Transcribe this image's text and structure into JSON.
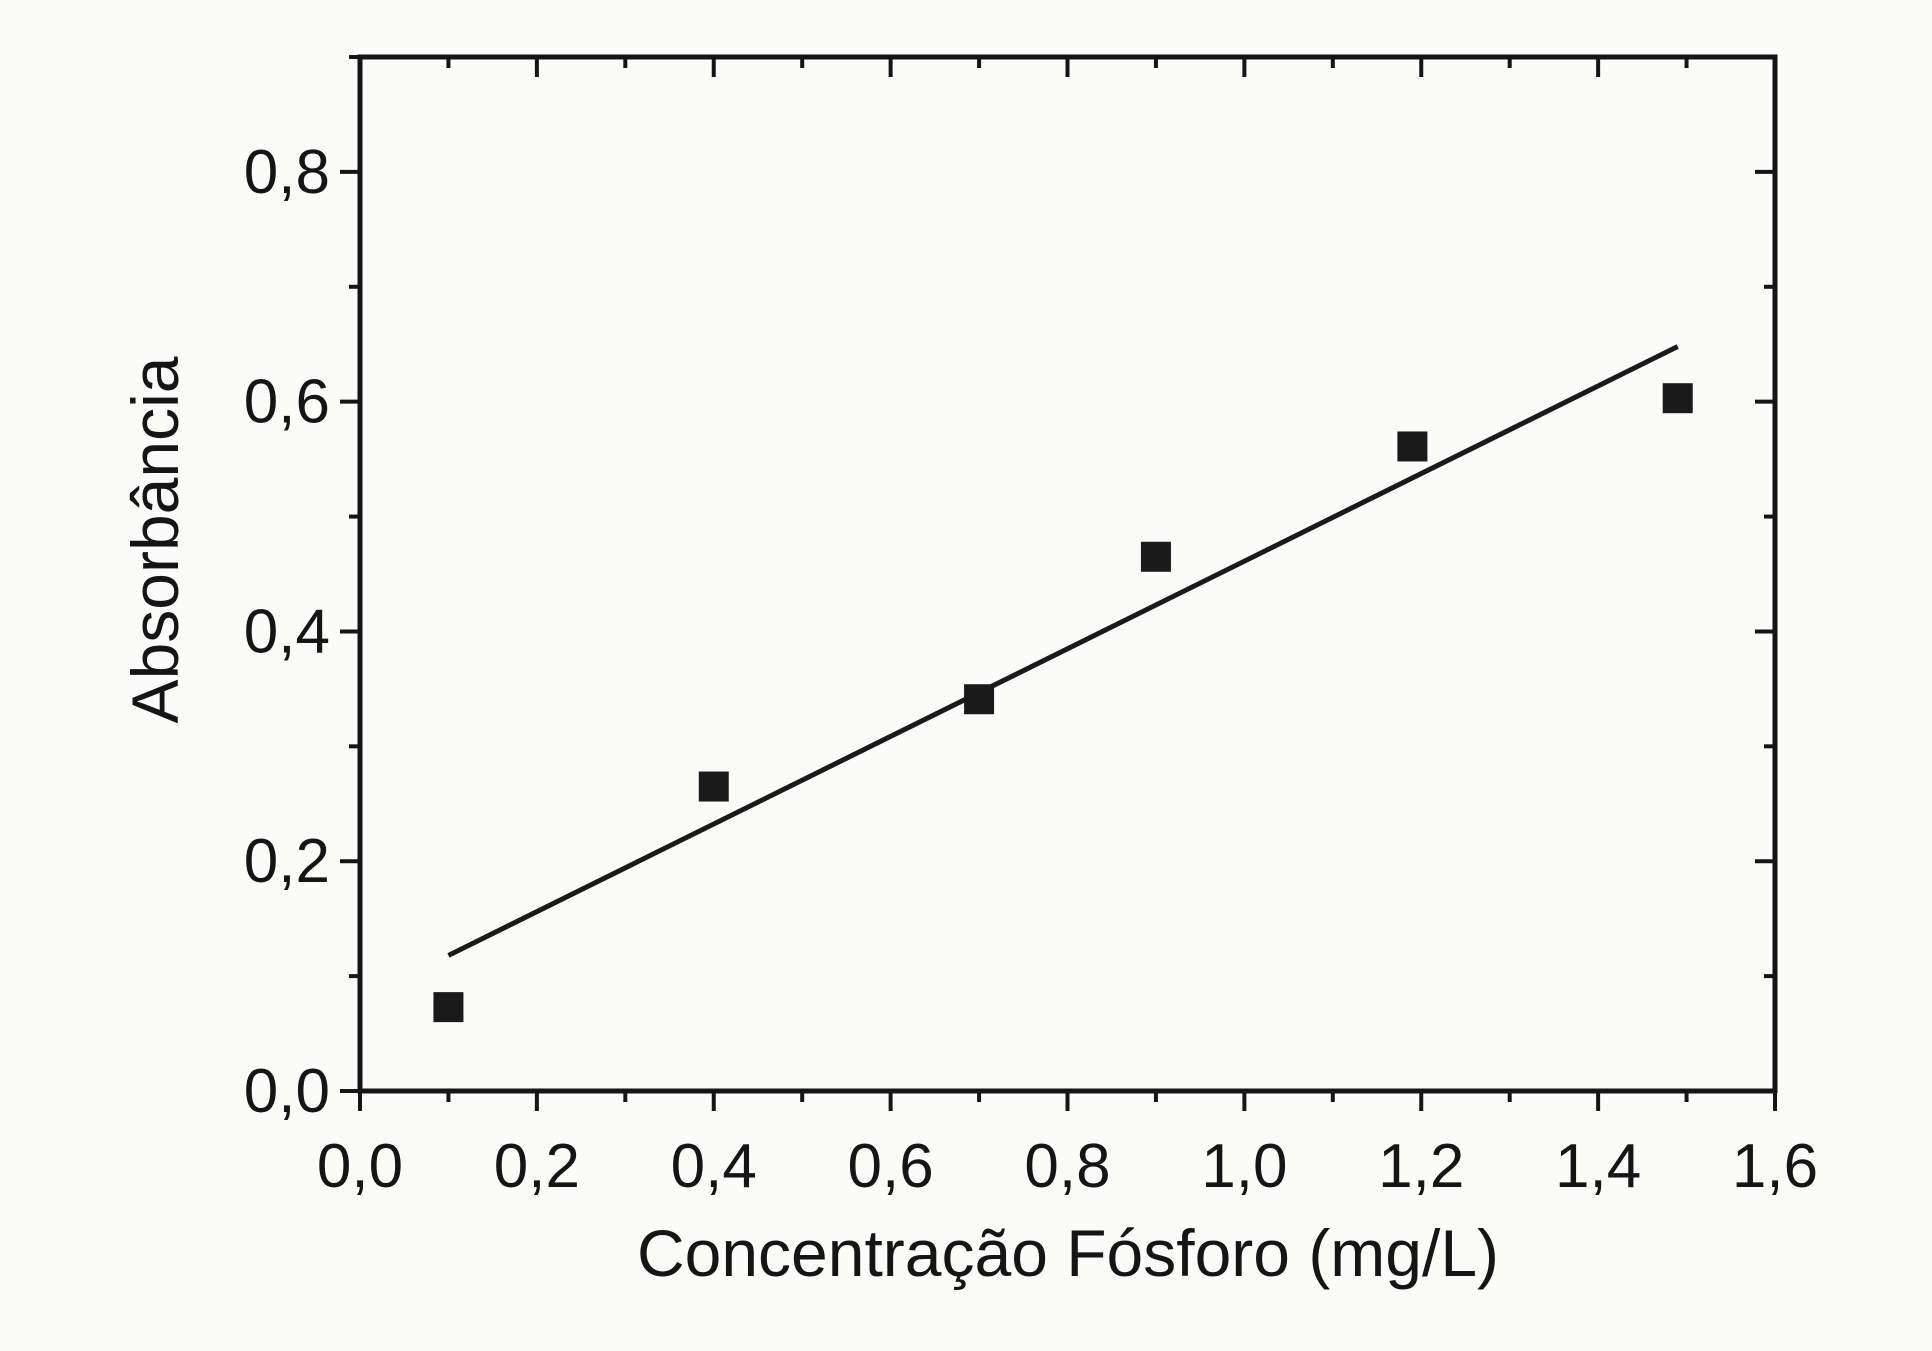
{
  "chart_data": {
    "type": "scatter",
    "title": "",
    "xlabel": "Concentração Fósforo (mg/L)",
    "ylabel": "Absorbância",
    "xlim": [
      0.0,
      1.6
    ],
    "ylim": [
      0.0,
      0.9
    ],
    "x_ticks": [
      "0,0",
      "0,2",
      "0,4",
      "0,6",
      "0,8",
      "1,0",
      "1,2",
      "1,4",
      "1,6"
    ],
    "y_ticks": [
      "0,0",
      "0,2",
      "0,4",
      "0,6",
      "0,8"
    ],
    "x_tick_values": [
      0.0,
      0.2,
      0.4,
      0.6,
      0.8,
      1.0,
      1.2,
      1.4,
      1.6
    ],
    "y_tick_values": [
      0.0,
      0.2,
      0.4,
      0.6,
      0.8
    ],
    "grid": false,
    "legend": "none",
    "series": [
      {
        "marker": "square",
        "color": "#1a1a1a",
        "x": [
          0.1,
          0.4,
          0.7,
          0.9,
          1.19,
          1.49
        ],
        "y": [
          0.073,
          0.265,
          0.341,
          0.465,
          0.561,
          0.603
        ]
      }
    ],
    "fit_line": {
      "color": "#1a1a1a",
      "x": [
        0.1,
        1.49
      ],
      "y": [
        0.118,
        0.648
      ]
    }
  }
}
